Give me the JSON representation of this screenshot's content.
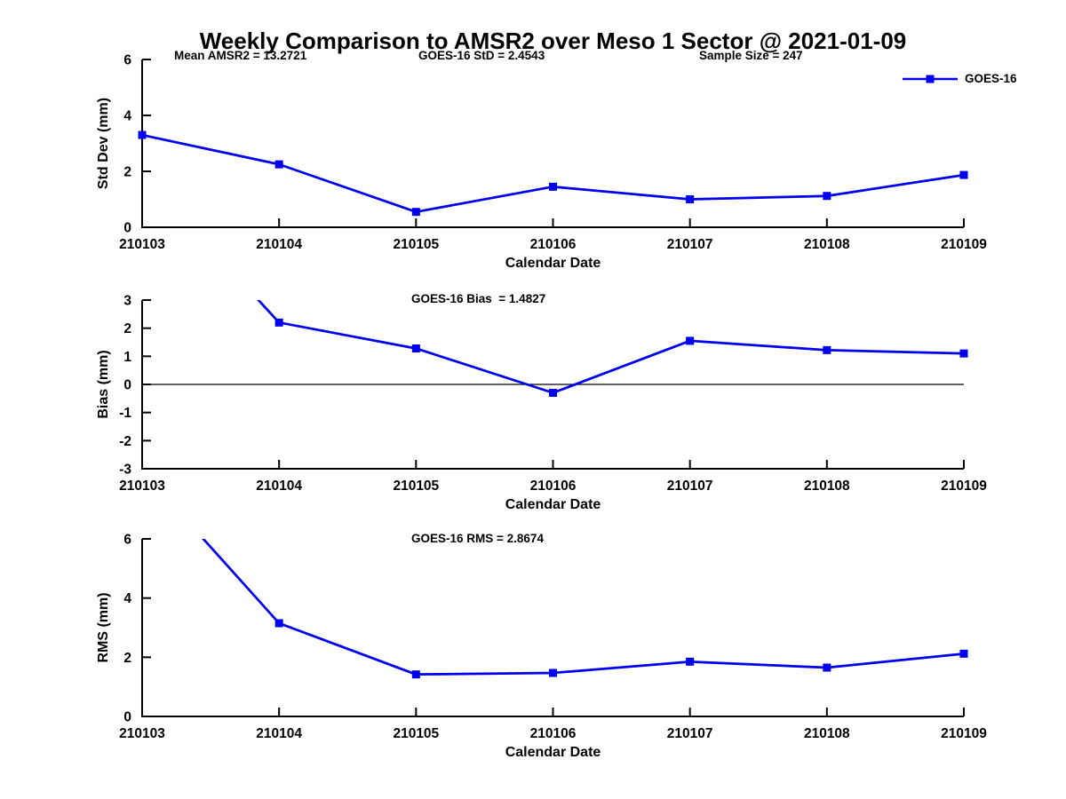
{
  "title": "Weekly Comparison to AMSR2 over Meso 1 Sector @ 2021-01-09",
  "legend": {
    "label": "GOES-16",
    "marker": "square"
  },
  "colors": {
    "series": "#0000EE",
    "axis": "#000000",
    "zero_line": "#000000"
  },
  "stats": {
    "mean_amsr2": "13.2721",
    "goes16_std": "2.4543",
    "sample_size": "247",
    "goes16_bias": "1.4827",
    "goes16_rms": "2.8674"
  },
  "chart_data": [
    {
      "type": "line",
      "annotations": [
        "Mean AMSR2 = 13.2721",
        "GOES-16 StD = 2.4543",
        "Sample Size = 247"
      ],
      "categories": [
        "210103",
        "210104",
        "210105",
        "210106",
        "210107",
        "210108",
        "210109"
      ],
      "series": [
        {
          "name": "GOES-16",
          "values": [
            3.3,
            2.25,
            0.55,
            1.45,
            1.0,
            1.12,
            1.87
          ]
        }
      ],
      "xlabel": "Calendar Date",
      "ylabel": "Std Dev (mm)",
      "ylim": [
        0,
        6
      ],
      "yticks": [
        0,
        2,
        4,
        6
      ],
      "zero_line": false,
      "grid": false,
      "legend_position": "top-right",
      "first_point_clipped": false
    },
    {
      "type": "line",
      "annotations": [
        "GOES-16 Bias  = 1.4827"
      ],
      "categories": [
        "210103",
        "210104",
        "210105",
        "210106",
        "210107",
        "210108",
        "210109"
      ],
      "series": [
        {
          "name": "GOES-16",
          "values": [
            7.5,
            2.2,
            1.28,
            -0.3,
            1.55,
            1.22,
            1.1
          ]
        }
      ],
      "xlabel": "Calendar Date",
      "ylabel": "Bias (mm)",
      "ylim": [
        -3,
        3
      ],
      "yticks": [
        -3,
        -2,
        -1,
        0,
        1,
        2,
        3
      ],
      "zero_line": true,
      "grid": false,
      "first_point_clipped": true
    },
    {
      "type": "line",
      "annotations": [
        "GOES-16 RMS = 2.8674"
      ],
      "categories": [
        "210103",
        "210104",
        "210105",
        "210106",
        "210107",
        "210108",
        "210109"
      ],
      "series": [
        {
          "name": "GOES-16",
          "values": [
            8.3,
            3.15,
            1.42,
            1.47,
            1.85,
            1.65,
            2.12
          ]
        }
      ],
      "xlabel": "Calendar Date",
      "ylabel": "RMS (mm)",
      "ylim": [
        0,
        6
      ],
      "yticks": [
        0,
        2,
        4,
        6
      ],
      "zero_line": false,
      "grid": false,
      "first_point_clipped": true
    }
  ]
}
